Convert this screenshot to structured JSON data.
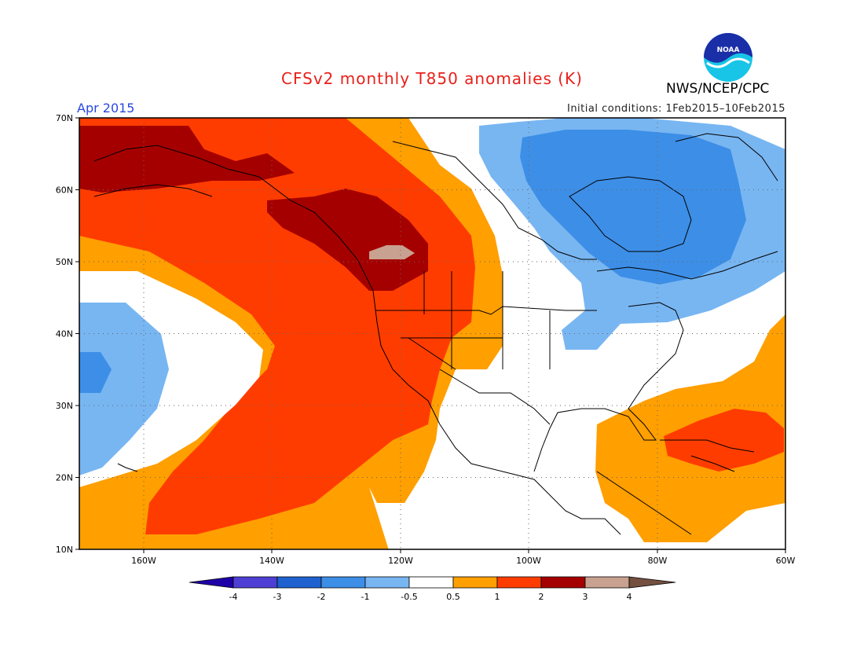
{
  "header": {
    "title": "CFSv2 monthly T850 anomalies (K)",
    "agency": "NWS/NCEP/CPC",
    "logo_text": "NOAA",
    "period": "Apr 2015",
    "initial_conditions": "Initial conditions: 1Feb2015–10Feb2015"
  },
  "colors": {
    "title": "#e8201a",
    "period": "#2a48e0"
  },
  "map": {
    "lat_labels": [
      "70N",
      "60N",
      "50N",
      "40N",
      "30N",
      "20N",
      "10N"
    ],
    "lon_labels": [
      "160W",
      "140W",
      "120W",
      "100W",
      "80W",
      "60W"
    ]
  },
  "colorbar": {
    "labels": [
      "-4",
      "-3",
      "-2",
      "-1",
      "-0.5",
      "0.5",
      "1",
      "2",
      "3",
      "4"
    ],
    "colors": [
      "#1f00a8",
      "#4e3fd4",
      "#1f62cf",
      "#3d8ee6",
      "#78b6f2",
      "#ffffff",
      "#ff9f00",
      "#ff3c00",
      "#a50000",
      "#c8a190",
      "#73503f"
    ]
  }
}
